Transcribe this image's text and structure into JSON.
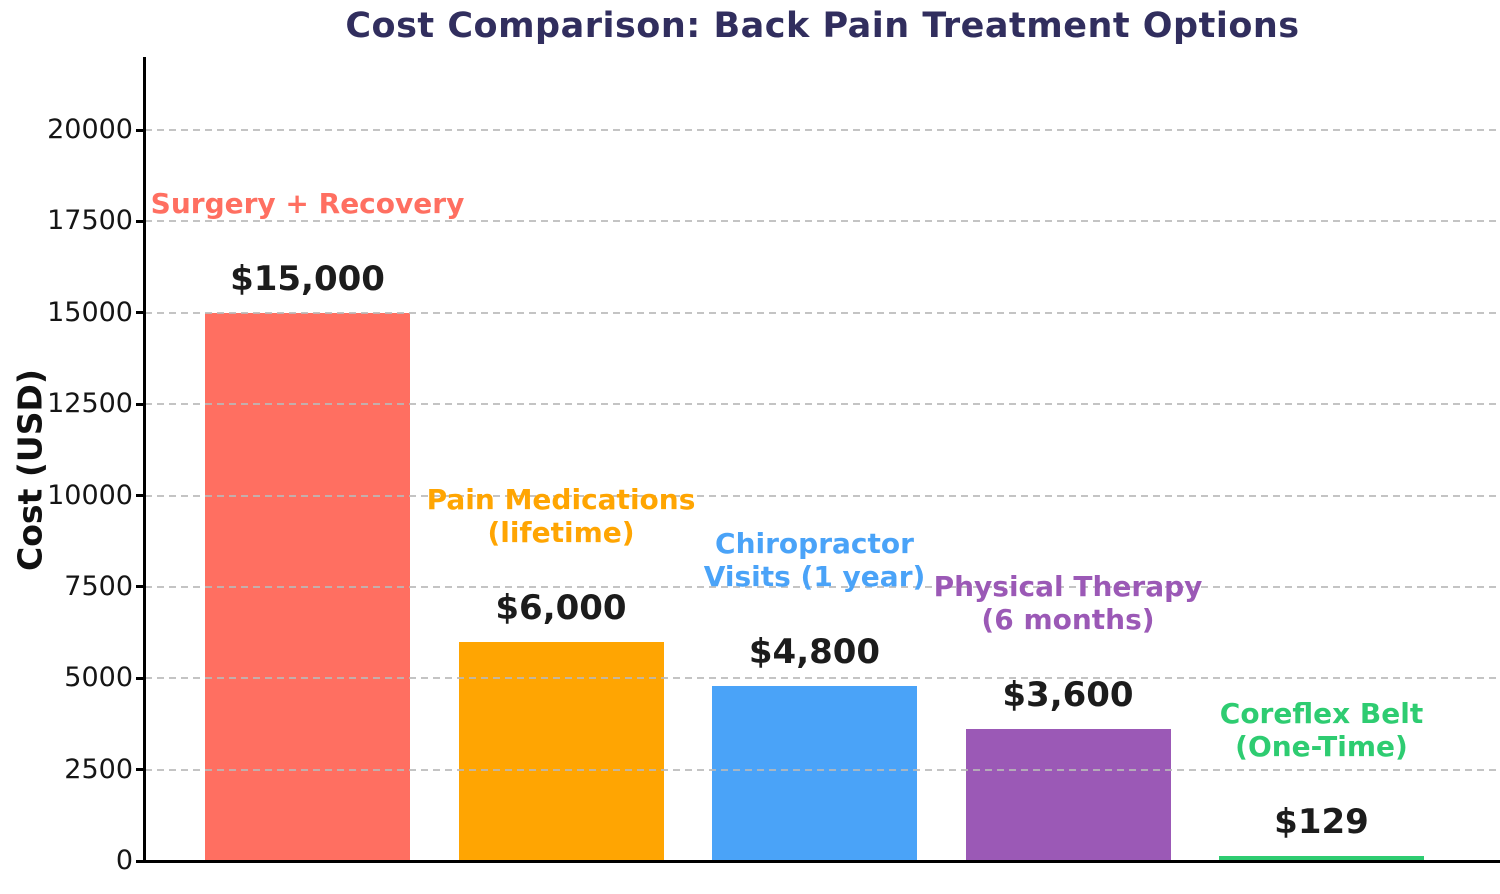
{
  "title": "Cost Comparison: Back Pain Treatment Options",
  "chart_data": {
    "type": "bar",
    "title": "Cost Comparison: Back Pain Treatment Options",
    "xlabel": "",
    "ylabel": "Cost (USD)",
    "categories": [
      "Surgery + Recovery",
      "Pain Medications (lifetime)",
      "Chiropractor Visits (1 year)",
      "Physical Therapy (6 months)",
      "Coreflex Belt (One-Time)"
    ],
    "category_lines": [
      [
        "Surgery + Recovery"
      ],
      [
        "Pain Medications",
        "(lifetime)"
      ],
      [
        "Chiropractor",
        "Visits (1 year)"
      ],
      [
        "Physical Therapy",
        "(6 months)"
      ],
      [
        "Coreflex Belt",
        "(One-Time)"
      ]
    ],
    "category_slugs": [
      "surgery-recovery",
      "pain-medications",
      "chiropractor-visits",
      "physical-therapy",
      "coreflex-belt"
    ],
    "values": [
      15000,
      6000,
      4800,
      3600,
      129
    ],
    "value_labels": [
      "$15,000",
      "$6,000",
      "$4,800",
      "$3,600",
      "$129"
    ],
    "bar_colors": [
      "#FF6F61",
      "#FFA502",
      "#4AA3F8",
      "#9B59B6",
      "#2ECC71"
    ],
    "ylim": [
      0,
      22000
    ],
    "yticks": [
      0,
      2500,
      5000,
      7500,
      10000,
      12500,
      15000,
      17500,
      20000
    ],
    "ytick_labels": [
      "0",
      "2500",
      "5000",
      "7500",
      "10000",
      "12500",
      "15000",
      "17500",
      "20000"
    ],
    "grid": "horizontal dashed",
    "legend": "none",
    "annotation_style": "category name colored to match bar, value label in black above each bar"
  },
  "colors": {
    "background": "#FFFFFF",
    "title_text": "#312E5E",
    "axis": "#000000",
    "tick_text": "#151515",
    "value_text": "#1C1C1C",
    "gridline": "#BBBBBB"
  }
}
